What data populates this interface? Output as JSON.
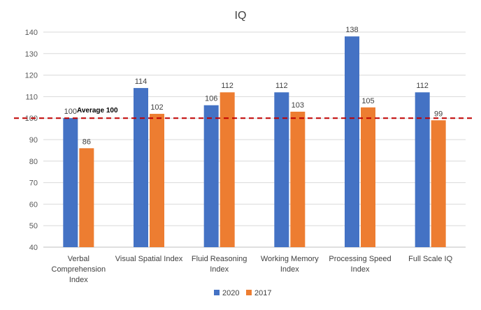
{
  "chart_data": {
    "type": "bar",
    "title": "IQ",
    "categories": [
      [
        "Verbal",
        "Comprehension",
        "Index"
      ],
      [
        "Visual Spatial Index"
      ],
      [
        "Fluid Reasoning",
        "Index"
      ],
      [
        "Working Memory",
        "Index"
      ],
      [
        "Processing Speed",
        "Index"
      ],
      [
        "Full Scale IQ"
      ]
    ],
    "series": [
      {
        "name": "2020",
        "color": "#4472C4",
        "values": [
          100,
          114,
          106,
          112,
          138,
          112
        ]
      },
      {
        "name": "2017",
        "color": "#ED7D31",
        "values": [
          86,
          102,
          112,
          103,
          105,
          99
        ]
      }
    ],
    "ylim": [
      40,
      140
    ],
    "yticks": [
      40,
      50,
      60,
      70,
      80,
      90,
      100,
      110,
      120,
      130,
      140
    ],
    "grid": true,
    "legend_position": "bottom",
    "reference_line": {
      "value": 100,
      "label": "Average 100",
      "color": "#C00000",
      "style": "dashed"
    }
  }
}
